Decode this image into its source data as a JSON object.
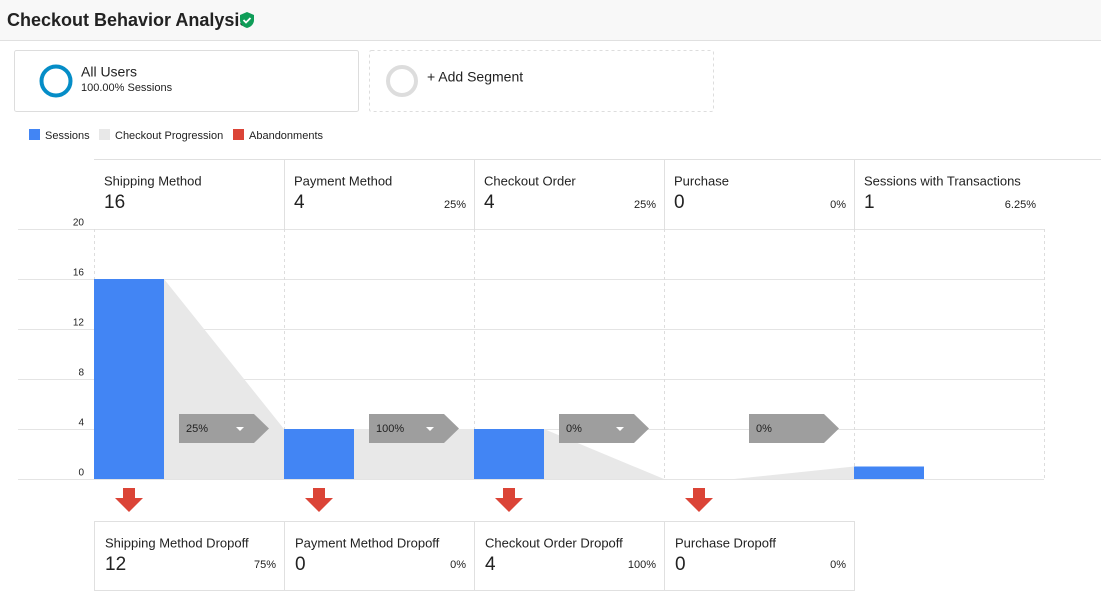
{
  "header": {
    "title": "Checkout Behavior Analysis"
  },
  "segments": [
    {
      "name": "All Users",
      "detail": "100.00% Sessions"
    },
    {
      "name": "+ Add Segment"
    }
  ],
  "chart_data": {
    "type": "funnel",
    "categories": [
      "Shipping Method",
      "Payment Method",
      "Checkout Order",
      "Purchase",
      "Sessions with Transactions"
    ],
    "series": [
      {
        "name": "Sessions",
        "color": "#4285f4",
        "values": [
          16,
          4,
          4,
          0,
          1
        ]
      },
      {
        "name": "Checkout Progression",
        "color": "#e8e8e8"
      },
      {
        "name": "Abandonments",
        "color": "#db4437"
      }
    ],
    "step_rates": {
      "values": [
        null,
        25,
        25,
        0,
        6.25
      ],
      "value_labels": [
        null,
        "25%",
        "25%",
        "0%",
        "6.25%"
      ]
    },
    "progression": {
      "values": [
        25,
        100,
        0,
        0
      ],
      "value_labels": [
        "25%",
        "100%",
        "0%",
        "0%"
      ]
    },
    "dropoffs": {
      "names": [
        "Shipping Method Dropoff",
        "Payment Method Dropoff",
        "Checkout Order Dropoff",
        "Purchase Dropoff"
      ],
      "values": [
        12,
        0,
        4,
        0
      ],
      "rates": {
        "values": [
          75,
          0,
          100,
          0
        ],
        "value_labels": [
          "75%",
          "0%",
          "100%",
          "0%"
        ]
      }
    },
    "ylim": [
      0,
      20
    ],
    "yticks": [
      0,
      4,
      8,
      12,
      16,
      20
    ],
    "grid": true
  }
}
